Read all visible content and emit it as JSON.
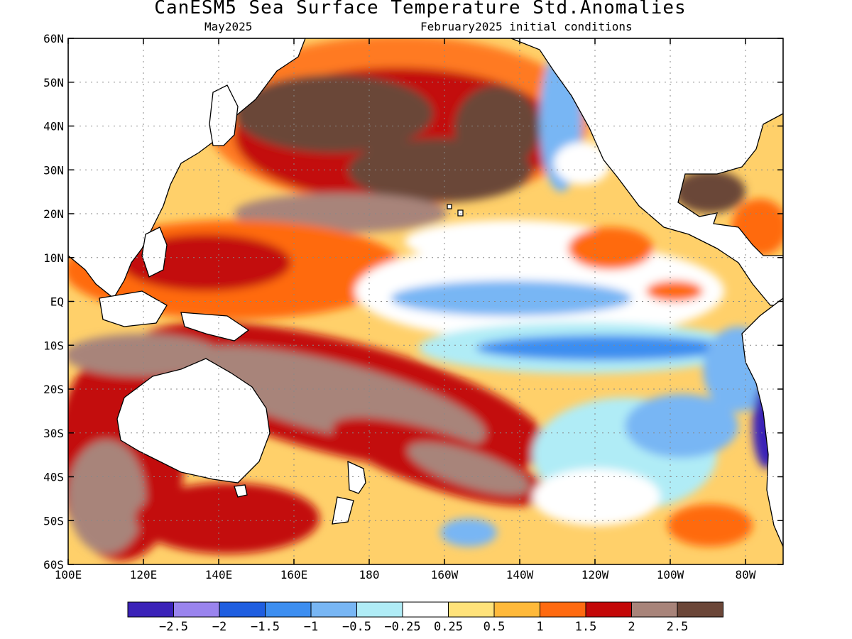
{
  "title": "CanESM5 Sea Surface Temperature Std.Anomalies",
  "subtitle_left": "May2025",
  "subtitle_right": "February2025 initial conditions",
  "map": {
    "lon_range": [
      100,
      290
    ],
    "lat_range": [
      -60,
      60
    ],
    "lon_ticks": [
      "100E",
      "120E",
      "140E",
      "160E",
      "180",
      "160W",
      "140W",
      "120W",
      "100W",
      "80W"
    ],
    "lat_ticks": [
      "60N",
      "50N",
      "40N",
      "30N",
      "20N",
      "10N",
      "EQ",
      "10S",
      "20S",
      "30S",
      "40S",
      "50S",
      "60S"
    ],
    "grid_lines": "dotted"
  },
  "colorbar": {
    "labels": [
      "-2.5",
      "-2",
      "-1.5",
      "-1",
      "-0.5",
      "-0.25",
      "0.25",
      "0.5",
      "1",
      "1.5",
      "2",
      "2.5"
    ],
    "colors": [
      "#3b22b8",
      "#9a84ee",
      "#1f5ee0",
      "#3d8ef0",
      "#78b6f4",
      "#b0ecf6",
      "#ffffff",
      "#ffe27a",
      "#ffb93a",
      "#ff6a10",
      "#c30808",
      "#a8847a",
      "#6b4638"
    ]
  },
  "colors": {
    "land": "#ffffff",
    "coastline": "#000000"
  }
}
